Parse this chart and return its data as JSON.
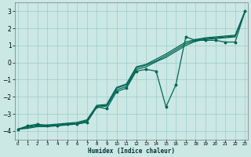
{
  "xlabel": "Humidex (Indice chaleur)",
  "x": [
    0,
    1,
    2,
    3,
    4,
    5,
    6,
    7,
    8,
    9,
    10,
    11,
    12,
    13,
    14,
    15,
    16,
    17,
    18,
    19,
    20,
    21,
    22,
    23
  ],
  "line_data": [
    -3.9,
    -3.7,
    -3.6,
    -3.7,
    -3.7,
    -3.6,
    -3.6,
    -3.5,
    -2.6,
    -2.7,
    -1.7,
    -1.5,
    -0.5,
    -0.4,
    -0.5,
    -2.6,
    -1.3,
    1.5,
    1.3,
    1.3,
    1.3,
    1.2,
    1.2,
    3.0
  ],
  "line_s1": [
    -3.9,
    -3.75,
    -3.65,
    -3.65,
    -3.6,
    -3.55,
    -3.5,
    -3.35,
    -2.5,
    -2.45,
    -1.45,
    -1.25,
    -0.25,
    -0.1,
    0.2,
    0.5,
    0.85,
    1.2,
    1.35,
    1.45,
    1.5,
    1.55,
    1.6,
    3.0
  ],
  "line_s2": [
    -3.9,
    -3.8,
    -3.7,
    -3.7,
    -3.65,
    -3.6,
    -3.55,
    -3.4,
    -2.55,
    -2.5,
    -1.5,
    -1.3,
    -0.3,
    -0.15,
    0.1,
    0.4,
    0.75,
    1.1,
    1.3,
    1.4,
    1.45,
    1.5,
    1.55,
    3.0
  ],
  "line_s3": [
    -3.9,
    -3.85,
    -3.75,
    -3.75,
    -3.7,
    -3.65,
    -3.6,
    -3.45,
    -2.6,
    -2.55,
    -1.6,
    -1.4,
    -0.4,
    -0.25,
    0.05,
    0.3,
    0.65,
    1.0,
    1.25,
    1.35,
    1.4,
    1.45,
    1.5,
    3.0
  ],
  "bg_color": "#cce8e4",
  "line_color": "#006655",
  "grid_color": "#99cccc",
  "ylim": [
    -4.5,
    3.5
  ],
  "yticks": [
    -4,
    -3,
    -2,
    -1,
    0,
    1,
    2,
    3
  ],
  "xlim": [
    -0.3,
    23.3
  ]
}
